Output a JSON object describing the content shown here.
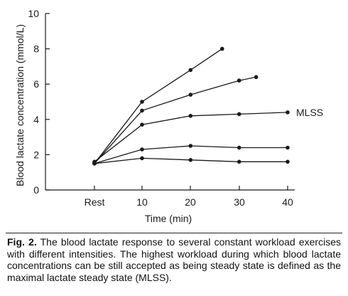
{
  "chart_data": {
    "type": "line",
    "categories": [
      "Rest",
      "10",
      "20",
      "30",
      "40"
    ],
    "x": [
      "Rest",
      10,
      20,
      30,
      40
    ],
    "xlabel": "Time (min)",
    "ylabel": "Blood lactate concentration (mmol/L)",
    "ylim": [
      0,
      10
    ],
    "yticks": [
      "0",
      "2",
      "4",
      "6",
      "8",
      "10"
    ],
    "xticks": [
      "Rest",
      "10",
      "20",
      "30",
      "40"
    ],
    "grid": false,
    "legend": "none",
    "series": [
      {
        "x": [
          "Rest",
          10,
          20,
          26.5
        ],
        "values": [
          1.5,
          5.0,
          6.8,
          8.0
        ]
      },
      {
        "x": [
          "Rest",
          10,
          20,
          30,
          33.5
        ],
        "values": [
          1.5,
          4.5,
          5.4,
          6.2,
          6.4
        ]
      },
      {
        "name": "MLSS",
        "x": [
          "Rest",
          10,
          20,
          30,
          40
        ],
        "values": [
          1.6,
          3.7,
          4.2,
          4.3,
          4.4
        ]
      },
      {
        "x": [
          "Rest",
          10,
          20,
          30,
          40
        ],
        "values": [
          1.5,
          2.3,
          2.5,
          2.4,
          2.4
        ]
      },
      {
        "x": [
          "Rest",
          10,
          20,
          30,
          40
        ],
        "values": [
          1.5,
          1.8,
          1.7,
          1.6,
          1.6
        ]
      }
    ],
    "annotations": [
      "MLSS"
    ]
  },
  "caption": {
    "label": "Fig. 2.",
    "text": " The blood lactate response to several constant workload exercises with different intensities. The highest workload during which blood lactate concentrations can be still accepted as being steady state is defined as the maximal lactate steady state (MLSS)."
  },
  "colors": {
    "line": "#1a1a1a",
    "axis": "#1a1a1a",
    "background": "#ffffff"
  }
}
